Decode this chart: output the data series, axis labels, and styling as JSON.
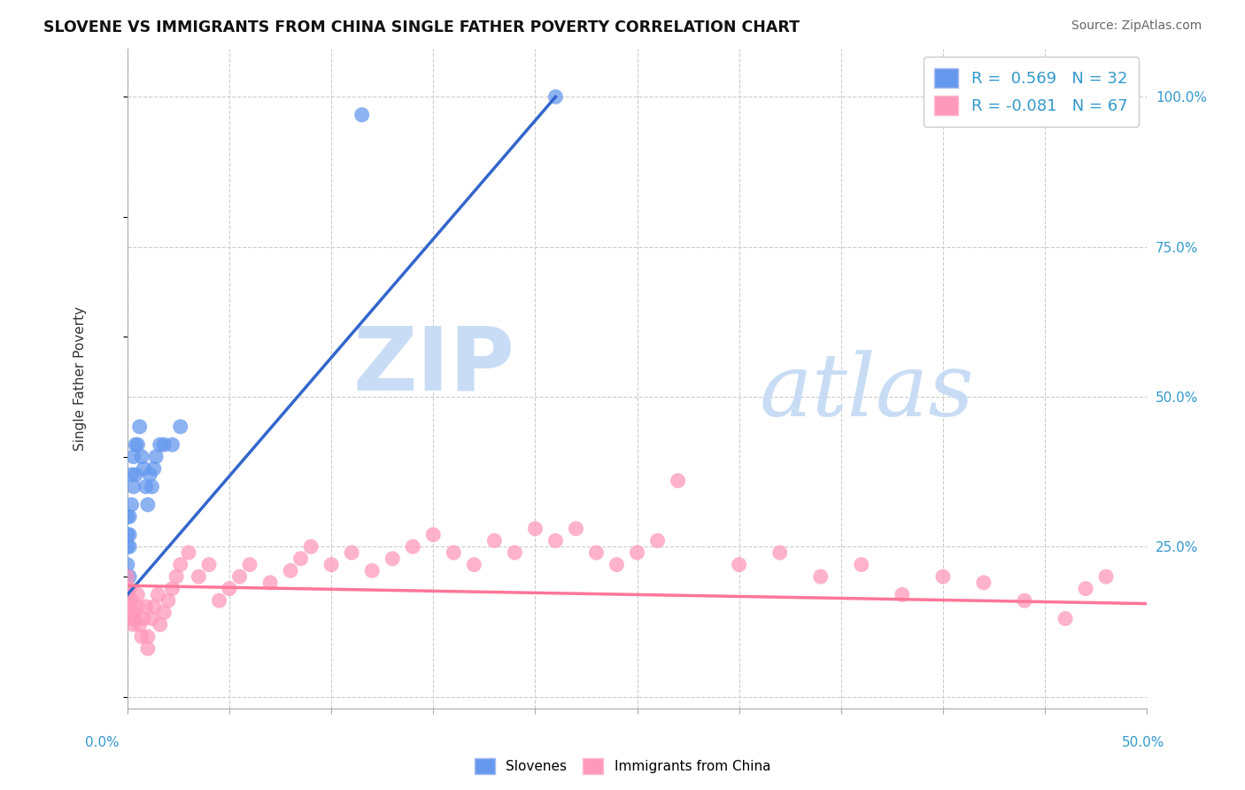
{
  "title": "SLOVENE VS IMMIGRANTS FROM CHINA SINGLE FATHER POVERTY CORRELATION CHART",
  "source": "Source: ZipAtlas.com",
  "ylabel": "Single Father Poverty",
  "xlim": [
    0.0,
    0.5
  ],
  "ylim": [
    -0.02,
    1.08
  ],
  "blue_color": "#6699EE",
  "pink_color": "#FF99BB",
  "blue_line_color": "#3366CC",
  "pink_line_color": "#FF7799",
  "watermark_zip": "ZIP",
  "watermark_atlas": "atlas",
  "slovene_x": [
    0.0,
    0.0,
    0.0,
    0.0,
    0.0,
    0.0,
    0.001,
    0.001,
    0.001,
    0.001,
    0.002,
    0.002,
    0.003,
    0.003,
    0.004,
    0.004,
    0.005,
    0.006,
    0.007,
    0.008,
    0.009,
    0.01,
    0.011,
    0.012,
    0.013,
    0.014,
    0.016,
    0.018,
    0.022,
    0.026,
    0.115,
    0.21
  ],
  "slovene_y": [
    0.17,
    0.2,
    0.22,
    0.25,
    0.27,
    0.3,
    0.2,
    0.25,
    0.27,
    0.3,
    0.32,
    0.37,
    0.35,
    0.4,
    0.37,
    0.42,
    0.42,
    0.45,
    0.4,
    0.38,
    0.35,
    0.32,
    0.37,
    0.35,
    0.38,
    0.4,
    0.42,
    0.42,
    0.42,
    0.45,
    0.97,
    1.0
  ],
  "china_x": [
    0.0,
    0.0,
    0.0,
    0.001,
    0.001,
    0.002,
    0.002,
    0.003,
    0.003,
    0.004,
    0.005,
    0.005,
    0.006,
    0.007,
    0.008,
    0.009,
    0.01,
    0.01,
    0.012,
    0.013,
    0.015,
    0.016,
    0.018,
    0.02,
    0.022,
    0.024,
    0.026,
    0.03,
    0.035,
    0.04,
    0.045,
    0.05,
    0.055,
    0.06,
    0.07,
    0.08,
    0.085,
    0.09,
    0.1,
    0.11,
    0.12,
    0.13,
    0.14,
    0.15,
    0.16,
    0.17,
    0.18,
    0.19,
    0.2,
    0.21,
    0.22,
    0.23,
    0.24,
    0.25,
    0.26,
    0.27,
    0.3,
    0.32,
    0.34,
    0.36,
    0.38,
    0.4,
    0.42,
    0.44,
    0.46,
    0.47,
    0.48
  ],
  "china_y": [
    0.17,
    0.18,
    0.2,
    0.15,
    0.18,
    0.13,
    0.16,
    0.14,
    0.12,
    0.13,
    0.15,
    0.17,
    0.12,
    0.1,
    0.13,
    0.15,
    0.08,
    0.1,
    0.13,
    0.15,
    0.17,
    0.12,
    0.14,
    0.16,
    0.18,
    0.2,
    0.22,
    0.24,
    0.2,
    0.22,
    0.16,
    0.18,
    0.2,
    0.22,
    0.19,
    0.21,
    0.23,
    0.25,
    0.22,
    0.24,
    0.21,
    0.23,
    0.25,
    0.27,
    0.24,
    0.22,
    0.26,
    0.24,
    0.28,
    0.26,
    0.28,
    0.24,
    0.22,
    0.24,
    0.26,
    0.36,
    0.22,
    0.24,
    0.2,
    0.22,
    0.17,
    0.2,
    0.19,
    0.16,
    0.13,
    0.18,
    0.2
  ]
}
